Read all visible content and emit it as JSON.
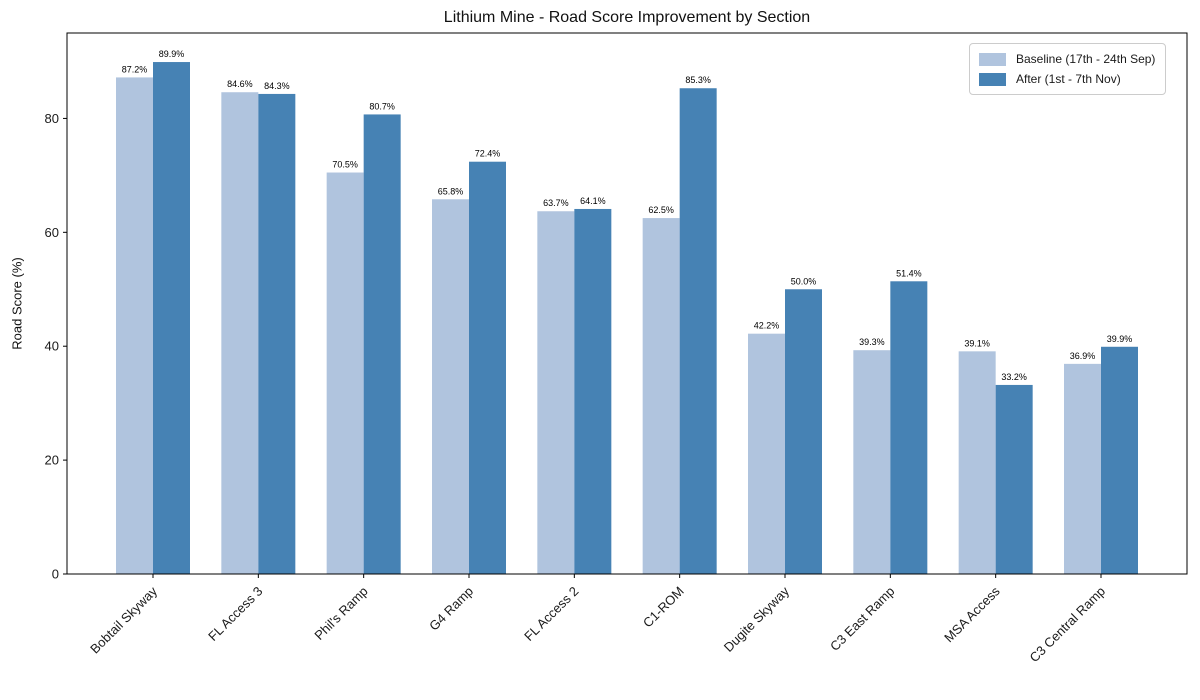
{
  "chart_data": {
    "type": "bar",
    "title": "Lithium Mine - Road Score Improvement by Section",
    "xlabel": "",
    "ylabel": "Road Score (%)",
    "categories": [
      "Bobtail Skyway",
      "FL Access 3",
      "Phil's Ramp",
      "G4 Ramp",
      "FL Access 2",
      "C1-ROM",
      "Dugite Skyway",
      "C3 East Ramp",
      "MSA Access",
      "C3 Central Ramp"
    ],
    "series": [
      {
        "name": "Baseline (17th - 24th Sep)",
        "color": "#b0c4de",
        "values": [
          87.2,
          84.6,
          70.5,
          65.8,
          63.7,
          62.5,
          42.2,
          39.3,
          39.1,
          36.9
        ]
      },
      {
        "name": "After (1st - 7th Nov)",
        "color": "#4682b4",
        "values": [
          89.9,
          84.3,
          80.7,
          72.4,
          64.1,
          85.3,
          50.0,
          51.4,
          33.2,
          39.9
        ]
      }
    ],
    "ylim": [
      0,
      95
    ],
    "yticks": [
      0,
      20,
      40,
      60,
      80
    ],
    "grid": false,
    "legend_position": "upper right",
    "bar_label_suffix": "%"
  },
  "colors": {
    "background": "#ffffff",
    "axis": "#000000",
    "tick_text": "#1a1a1a",
    "bar_label_text": "#000000",
    "legend_border": "#cccccc"
  }
}
